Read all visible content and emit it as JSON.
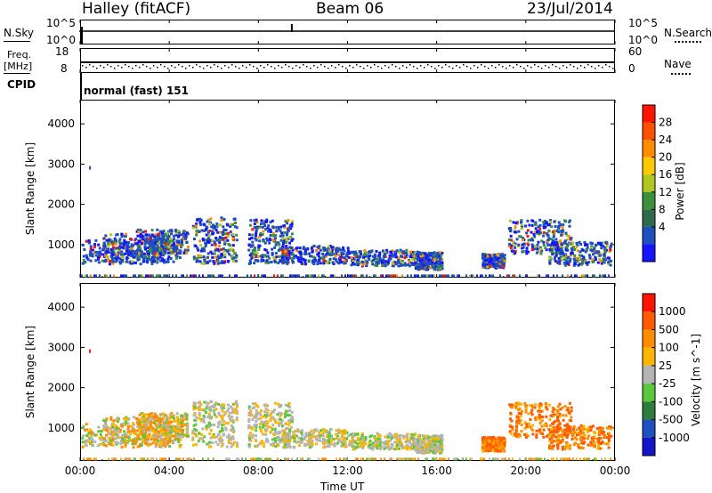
{
  "header": {
    "station": "Halley (fitACF)",
    "beam": "Beam 06",
    "date": "23/Jul/2014"
  },
  "strip_nsky": {
    "left_label": "N.Sky",
    "left_ticks": [
      "10^5",
      "10^0"
    ],
    "right_ticks": [
      "10^5",
      "10^0"
    ],
    "right_label": "N.Search"
  },
  "strip_freq": {
    "left_label_top": "Freq.",
    "left_label_unit": "[MHz]",
    "left_ticks": [
      "18",
      "8"
    ],
    "right_ticks": [
      "60",
      "0"
    ],
    "right_label": "Nave"
  },
  "cpid": {
    "label": "CPID",
    "value": "normal (fast) 151"
  },
  "colors": {
    "power": [
      "#1414ff",
      "#1e4fbf",
      "#2e6b4a",
      "#3c8f3c",
      "#b0c81e",
      "#ffc800",
      "#ff8c00",
      "#ff5000",
      "#ff1400"
    ],
    "velocity": [
      "#ff1400",
      "#ff5a00",
      "#ff8c00",
      "#ffb400",
      "#b4b4b4",
      "#5ac83c",
      "#2e7d3c",
      "#1e4fbf",
      "#1414c8"
    ]
  },
  "chart_data": [
    {
      "type": "heatmap",
      "title": "Power",
      "xlabel": "Time UT",
      "ylabel": "Slant Range [km]",
      "x_ticks": [
        "00:00",
        "04:00",
        "08:00",
        "12:00",
        "16:00",
        "20:00",
        "00:00"
      ],
      "y_ticks": [
        "1000",
        "2000",
        "3000",
        "4000"
      ],
      "ylim": [
        180,
        4600
      ],
      "colorbar_label": "Power [dB]",
      "colorbar_ticks": [
        "4",
        "8",
        "12",
        "16",
        "20",
        "24",
        "28"
      ],
      "clim": [
        0,
        32
      ]
    },
    {
      "type": "heatmap",
      "title": "Velocity",
      "xlabel": "Time UT",
      "ylabel": "Slant Range [km]",
      "x_ticks": [
        "00:00",
        "04:00",
        "08:00",
        "12:00",
        "16:00",
        "20:00",
        "00:00"
      ],
      "y_ticks": [
        "1000",
        "2000",
        "3000",
        "4000"
      ],
      "ylim": [
        180,
        4600
      ],
      "colorbar_label": "Velocity [m s^-1]",
      "colorbar_ticks": [
        "1000",
        "500",
        "100",
        "25",
        "-25",
        "-100",
        "-500",
        "-1000"
      ]
    }
  ]
}
